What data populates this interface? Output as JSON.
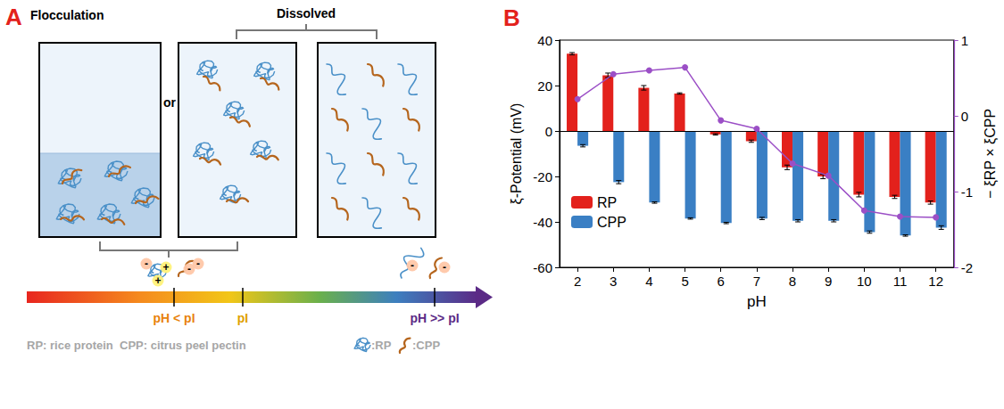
{
  "diagram": {
    "panel": "A",
    "states": {
      "flocculation": "Flocculation",
      "dissolved": "Dissolved",
      "or": "or"
    },
    "scale": {
      "left": "pH < pI",
      "middle": "pI",
      "right": "pH >> pI"
    },
    "key": {
      "abbreviations": "RP: rice protein  CPP: citrus peel pectin",
      "rp": ":RP",
      "cpp": ":CPP"
    },
    "charges": {
      "positive": "+",
      "negative": "-"
    }
  },
  "chart_data": {
    "type": "bar",
    "title": "B",
    "xlabel": "pH",
    "ylabel": "ξ-Potential (mV)",
    "y2label": "− ξRP × ξCPP",
    "categories": [
      2,
      3,
      4,
      5,
      6,
      7,
      8,
      9,
      10,
      11,
      12
    ],
    "ylim": [
      -60,
      40
    ],
    "yticks": [
      -60,
      -40,
      -20,
      0,
      20,
      40
    ],
    "y2lim": [
      -2,
      1
    ],
    "y2ticks": [
      -2,
      -1,
      0,
      1
    ],
    "grid": false,
    "legend": "lower left",
    "series": [
      {
        "name": "RP",
        "type": "bar",
        "color": "#e3211c",
        "values": [
          34,
          24.5,
          19,
          16.5,
          -1.5,
          -4.5,
          -16,
          -20,
          -28,
          -29,
          -31.5
        ],
        "errors": [
          0.5,
          1,
          1,
          0.3,
          0.3,
          0.5,
          1,
          1,
          1,
          0.7,
          0.7
        ]
      },
      {
        "name": "CPP",
        "type": "bar",
        "color": "#3a7fc4",
        "values": [
          -6.5,
          -22.5,
          -31.5,
          -38.5,
          -40.5,
          -38.5,
          -39.5,
          -39.5,
          -44.5,
          -46,
          -42.5
        ],
        "errors": [
          0.5,
          0.7,
          0.3,
          0.3,
          0.3,
          0.5,
          0.5,
          0.5,
          0.5,
          0.3,
          0.8
        ]
      },
      {
        "type": "line",
        "axis": "y2",
        "color": "#9b4fc6",
        "marker": "circle",
        "line_style": "solid",
        "values": [
          0.22,
          0.55,
          0.6,
          0.64,
          -0.06,
          -0.17,
          -0.63,
          -0.79,
          -1.25,
          -1.33,
          -1.34
        ]
      }
    ]
  }
}
